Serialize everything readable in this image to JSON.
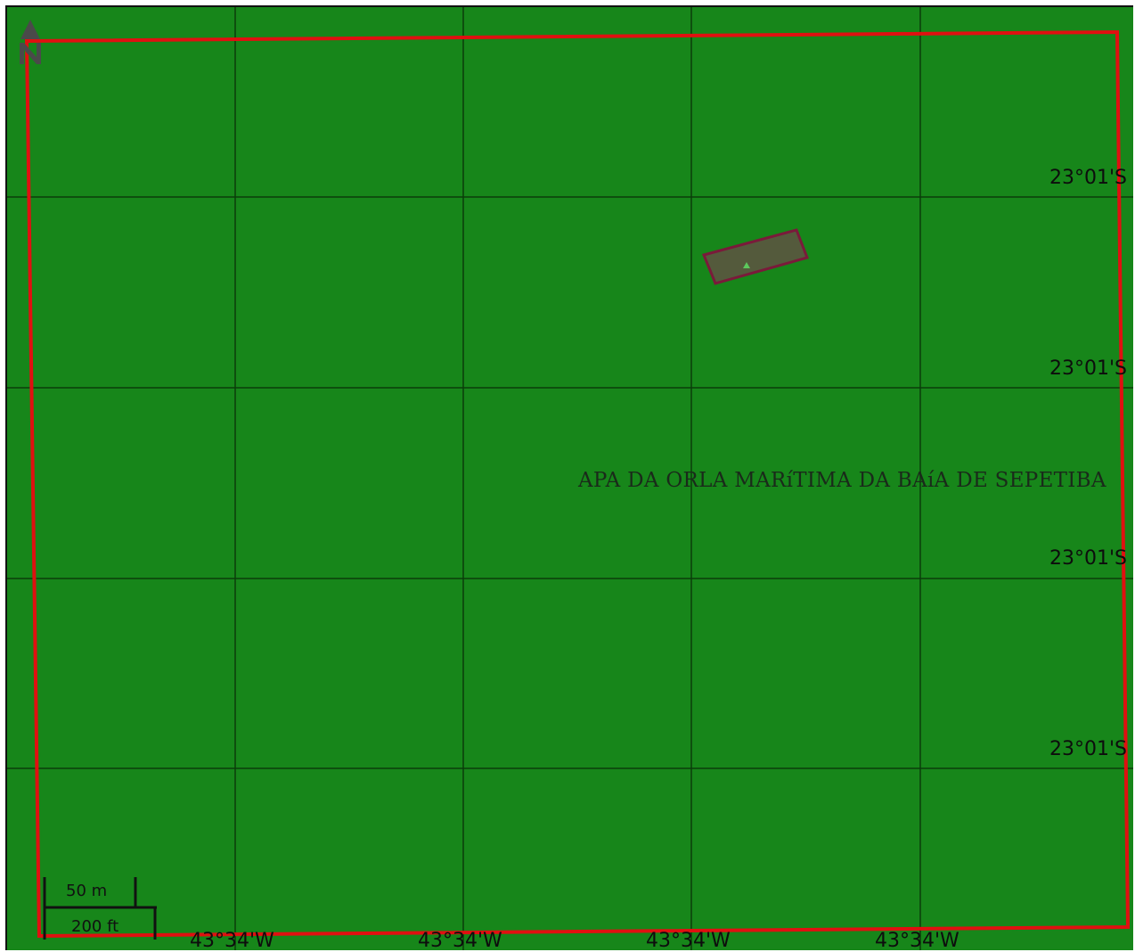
{
  "map": {
    "background_color": "#17861a",
    "boundary_color": "#e01010",
    "feature_fill": "#545a3c",
    "feature_stroke": "#7a1a3a",
    "area_label": "APA DA ORLA MARíTIMA DA BAíA DE SEPETIBA",
    "latitude_labels": [
      "23°01'S",
      "23°01'S",
      "23°01'S",
      "23°01'S"
    ],
    "longitude_labels": [
      "43°34'W",
      "43°34'W",
      "43°34'W",
      "43°34'W"
    ],
    "north_arrow": {
      "icon": "north-arrow-icon",
      "label": "N"
    },
    "scale_bar": {
      "metric_label": "50 m",
      "imperial_label": "200 ft"
    }
  }
}
